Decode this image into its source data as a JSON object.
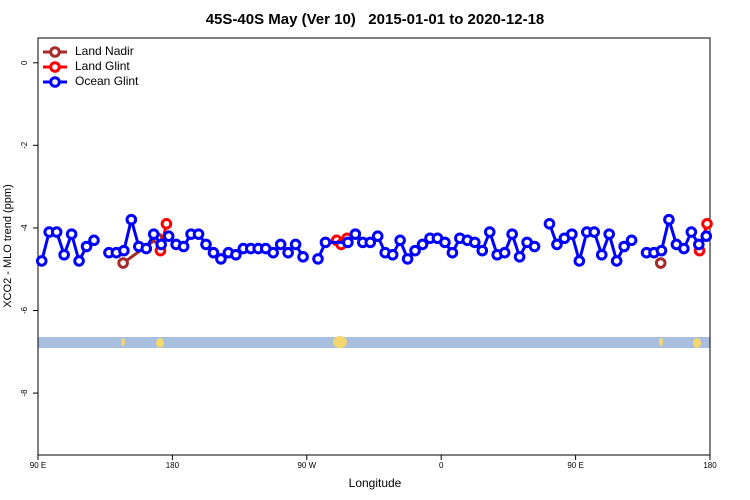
{
  "chart_data": {
    "type": "line",
    "title": "45S-40S May (Ver 10)   2015-01-01 to 2020-12-18",
    "x_label": "Longitude",
    "y_label": "XCO2 - MLO trend (ppm)",
    "xlim": [
      90,
      540
    ],
    "xticks": [
      {
        "value": 90,
        "label": "90 E"
      },
      180,
      {
        "value": 270,
        "label": "90 W"
      },
      {
        "value": 360,
        "label": "0"
      },
      {
        "value": 450,
        "label": "90 E"
      },
      {
        "value": 540,
        "label": "180"
      }
    ],
    "ylim": [
      -9.5,
      0.6
    ],
    "yticks": [
      0,
      -2,
      -4,
      -6,
      -8
    ],
    "legend": "top-left",
    "series": [
      {
        "name": "Land Nadir",
        "color": "#a52a2a",
        "x": [
          147,
          170,
          340,
          507
        ],
        "values": [
          -4.85,
          -4.25,
          null,
          -4.85
        ]
      },
      {
        "name": "Land Glint",
        "color": "#ff0000",
        "x": [
          172,
          176,
          230,
          290,
          293,
          297,
          420,
          533,
          538
        ],
        "values": [
          -4.55,
          -3.9,
          null,
          -4.3,
          -4.4,
          -4.25,
          null,
          -4.55,
          -3.9
        ]
      },
      {
        "name": "Ocean Glint",
        "color": "#0000ff",
        "x": [
          92.5,
          97.5,
          102.5,
          107.5,
          112.5,
          117.5,
          122.5,
          127.5,
          132.5,
          137.5,
          142.5,
          147.5,
          152.5,
          157.5,
          162.5,
          167.5,
          172.5,
          177.5,
          182.5,
          187.5,
          192.5,
          197.5,
          202.5,
          207.5,
          212.5,
          217.5,
          222.5,
          227.5,
          232.5,
          237.5,
          242.5,
          247.5,
          252.5,
          257.5,
          262.5,
          267.5,
          272.5,
          277.5,
          282.5,
          297.5,
          302.5,
          307.5,
          312.5,
          317.5,
          322.5,
          327.5,
          332.5,
          337.5,
          342.5,
          347.5,
          352.5,
          357.5,
          362.5,
          367.5,
          372.5,
          377.5,
          382.5,
          387.5,
          392.5,
          397.5,
          402.5,
          407.5,
          412.5,
          417.5,
          422.5,
          427.5,
          432.5,
          437.5,
          442.5,
          447.5,
          452.5,
          457.5,
          462.5,
          467.5,
          472.5,
          477.5,
          482.5,
          487.5,
          492.5,
          497.5,
          502.5,
          507.5,
          512.5,
          517.5,
          522.5,
          527.5,
          532.5,
          537.5
        ],
        "values": [
          -4.8,
          -4.1,
          -4.1,
          -4.65,
          -4.15,
          -4.8,
          -4.45,
          -4.3,
          null,
          -4.6,
          -4.6,
          -4.55,
          -3.8,
          -4.45,
          -4.5,
          -4.15,
          -4.4,
          -4.2,
          -4.4,
          -4.45,
          -4.15,
          -4.15,
          -4.4,
          -4.6,
          -4.75,
          -4.6,
          -4.65,
          -4.5,
          -4.5,
          -4.5,
          -4.5,
          -4.6,
          -4.4,
          -4.6,
          -4.4,
          -4.7,
          null,
          -4.75,
          -4.35,
          -4.35,
          -4.15,
          -4.35,
          -4.35,
          -4.2,
          -4.6,
          -4.65,
          -4.3,
          -4.75,
          -4.55,
          -4.4,
          -4.25,
          -4.25,
          -4.35,
          -4.6,
          -4.25,
          -4.3,
          -4.35,
          -4.55,
          -4.1,
          -4.65,
          -4.6,
          -4.15,
          -4.7,
          -4.35,
          -4.45,
          null,
          -3.9,
          -4.4,
          -4.25,
          -4.15,
          -4.8,
          -4.1,
          -4.1,
          -4.65,
          -4.15,
          -4.8,
          -4.45,
          -4.3,
          null,
          -4.6,
          -4.6,
          -4.55,
          -3.8,
          -4.4,
          -4.5,
          -4.1,
          -4.4,
          -4.2
        ]
      }
    ]
  }
}
